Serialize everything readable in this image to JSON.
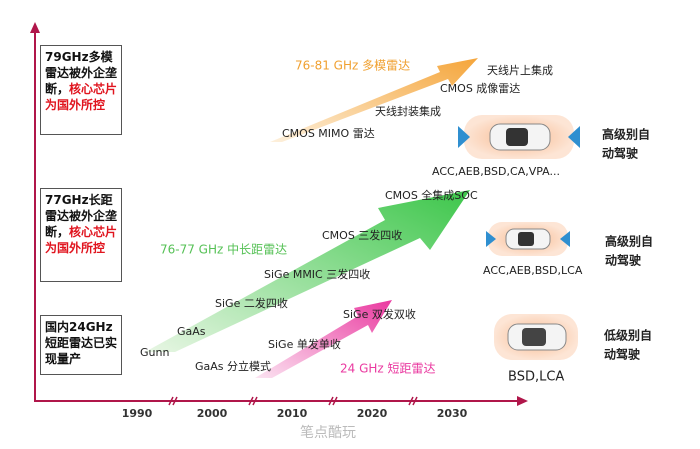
{
  "axis": {
    "x_labels": [
      "1990",
      "2000",
      "2010",
      "2020",
      "2030"
    ]
  },
  "left_notes": [
    {
      "text": "79GHz多模雷达被外企垄断，",
      "highlight": "核心芯片为国外所控"
    },
    {
      "text": "77GHz长距雷达被外企垄断，",
      "highlight": "核心芯片为国外所控"
    },
    {
      "text": "国内24GHz短距雷达已实现量产"
    }
  ],
  "tracks": [
    {
      "title": "76-81 GHz 多模雷达",
      "milestones": [
        "CMOS MIMO 雷达",
        "天线封装集成",
        "CMOS 成像雷达",
        "天线片上集成"
      ]
    },
    {
      "title": "76-77 GHz 中长距雷达",
      "milestones": [
        "Gunn",
        "GaAs",
        "SiGe 二发四收",
        "SiGe MMIC 三发四收",
        "CMOS 三发四收",
        "CMOS 全集成SOC"
      ]
    },
    {
      "title": "24 GHz 短距雷达",
      "milestones": [
        "GaAs 分立模式",
        "SiGe 单发单收",
        "SiGe 双发双收"
      ]
    }
  ],
  "applications": [
    {
      "features": "ACC,AEB,BSD,CA,VPA...",
      "level": "高级别自动驾驶"
    },
    {
      "features": "ACC,AEB,BSD,LCA",
      "level": "高级别自动驾驶"
    },
    {
      "features": "BSD,LCA",
      "level": "低级别自动驾驶"
    }
  ],
  "watermark": "笔点酷玩"
}
